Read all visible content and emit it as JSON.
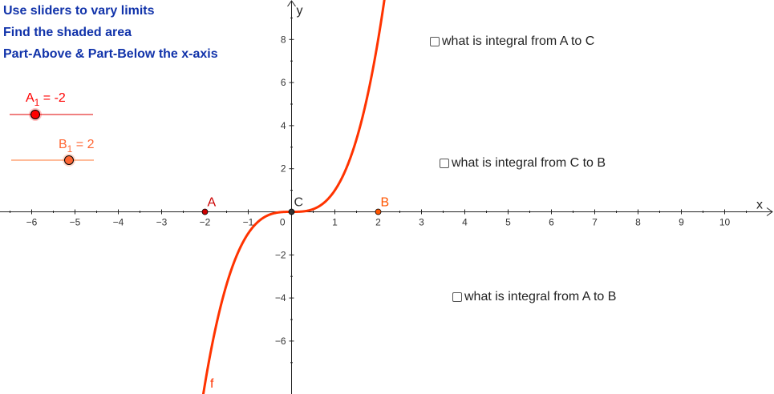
{
  "instructions": [
    "Use sliders to vary limits",
    "Find the shaded area",
    "Part-Above & Part-Below the x-axis"
  ],
  "sliders": {
    "a1": {
      "name": "A",
      "sub": "1",
      "value": -2,
      "suffix": " = -2",
      "color": "#ff0000",
      "track_color": "#f08080"
    },
    "b1": {
      "name": "B",
      "sub": "1",
      "value": 2,
      "suffix": " = 2",
      "color": "#ff6633",
      "track_color": "#ffbb99"
    }
  },
  "checkboxes": {
    "a_to_c": "what is integral from A to C",
    "c_to_b": "what is integral from C to B",
    "a_to_b": "what is integral from A to B"
  },
  "axes": {
    "x_label": "x",
    "y_label": "y",
    "origin_label": "0",
    "x_ticks": [
      {
        "v": -6,
        "t": "−6"
      },
      {
        "v": -5,
        "t": "−5"
      },
      {
        "v": -4,
        "t": "−4"
      },
      {
        "v": -3,
        "t": "−3"
      },
      {
        "v": -2,
        "t": "−2"
      },
      {
        "v": -1,
        "t": "−1"
      },
      {
        "v": 1,
        "t": "1"
      },
      {
        "v": 2,
        "t": "2"
      },
      {
        "v": 3,
        "t": "3"
      },
      {
        "v": 4,
        "t": "4"
      },
      {
        "v": 5,
        "t": "5"
      },
      {
        "v": 6,
        "t": "6"
      },
      {
        "v": 7,
        "t": "7"
      },
      {
        "v": 8,
        "t": "8"
      },
      {
        "v": 9,
        "t": "9"
      },
      {
        "v": 10,
        "t": "10"
      }
    ],
    "y_ticks": [
      {
        "v": 8,
        "t": "8"
      },
      {
        "v": 6,
        "t": "6"
      },
      {
        "v": 4,
        "t": "4"
      },
      {
        "v": 2,
        "t": "2"
      },
      {
        "v": -2,
        "t": "−2"
      },
      {
        "v": -4,
        "t": "−4"
      },
      {
        "v": -6,
        "t": "−6"
      }
    ],
    "x_range": [
      -6.7,
      11.1
    ],
    "y_range": [
      -8.4,
      9.8
    ]
  },
  "points": [
    {
      "label": "A",
      "x": -2,
      "y": 0,
      "color": "#cc0000"
    },
    {
      "label": "B",
      "x": 2,
      "y": 0,
      "color": "#ff5500"
    },
    {
      "label": "C",
      "x": 0,
      "y": 0,
      "color": "#333333"
    }
  ],
  "curve": {
    "label": "f",
    "color": "#ff3300",
    "formula": "x^3"
  }
}
